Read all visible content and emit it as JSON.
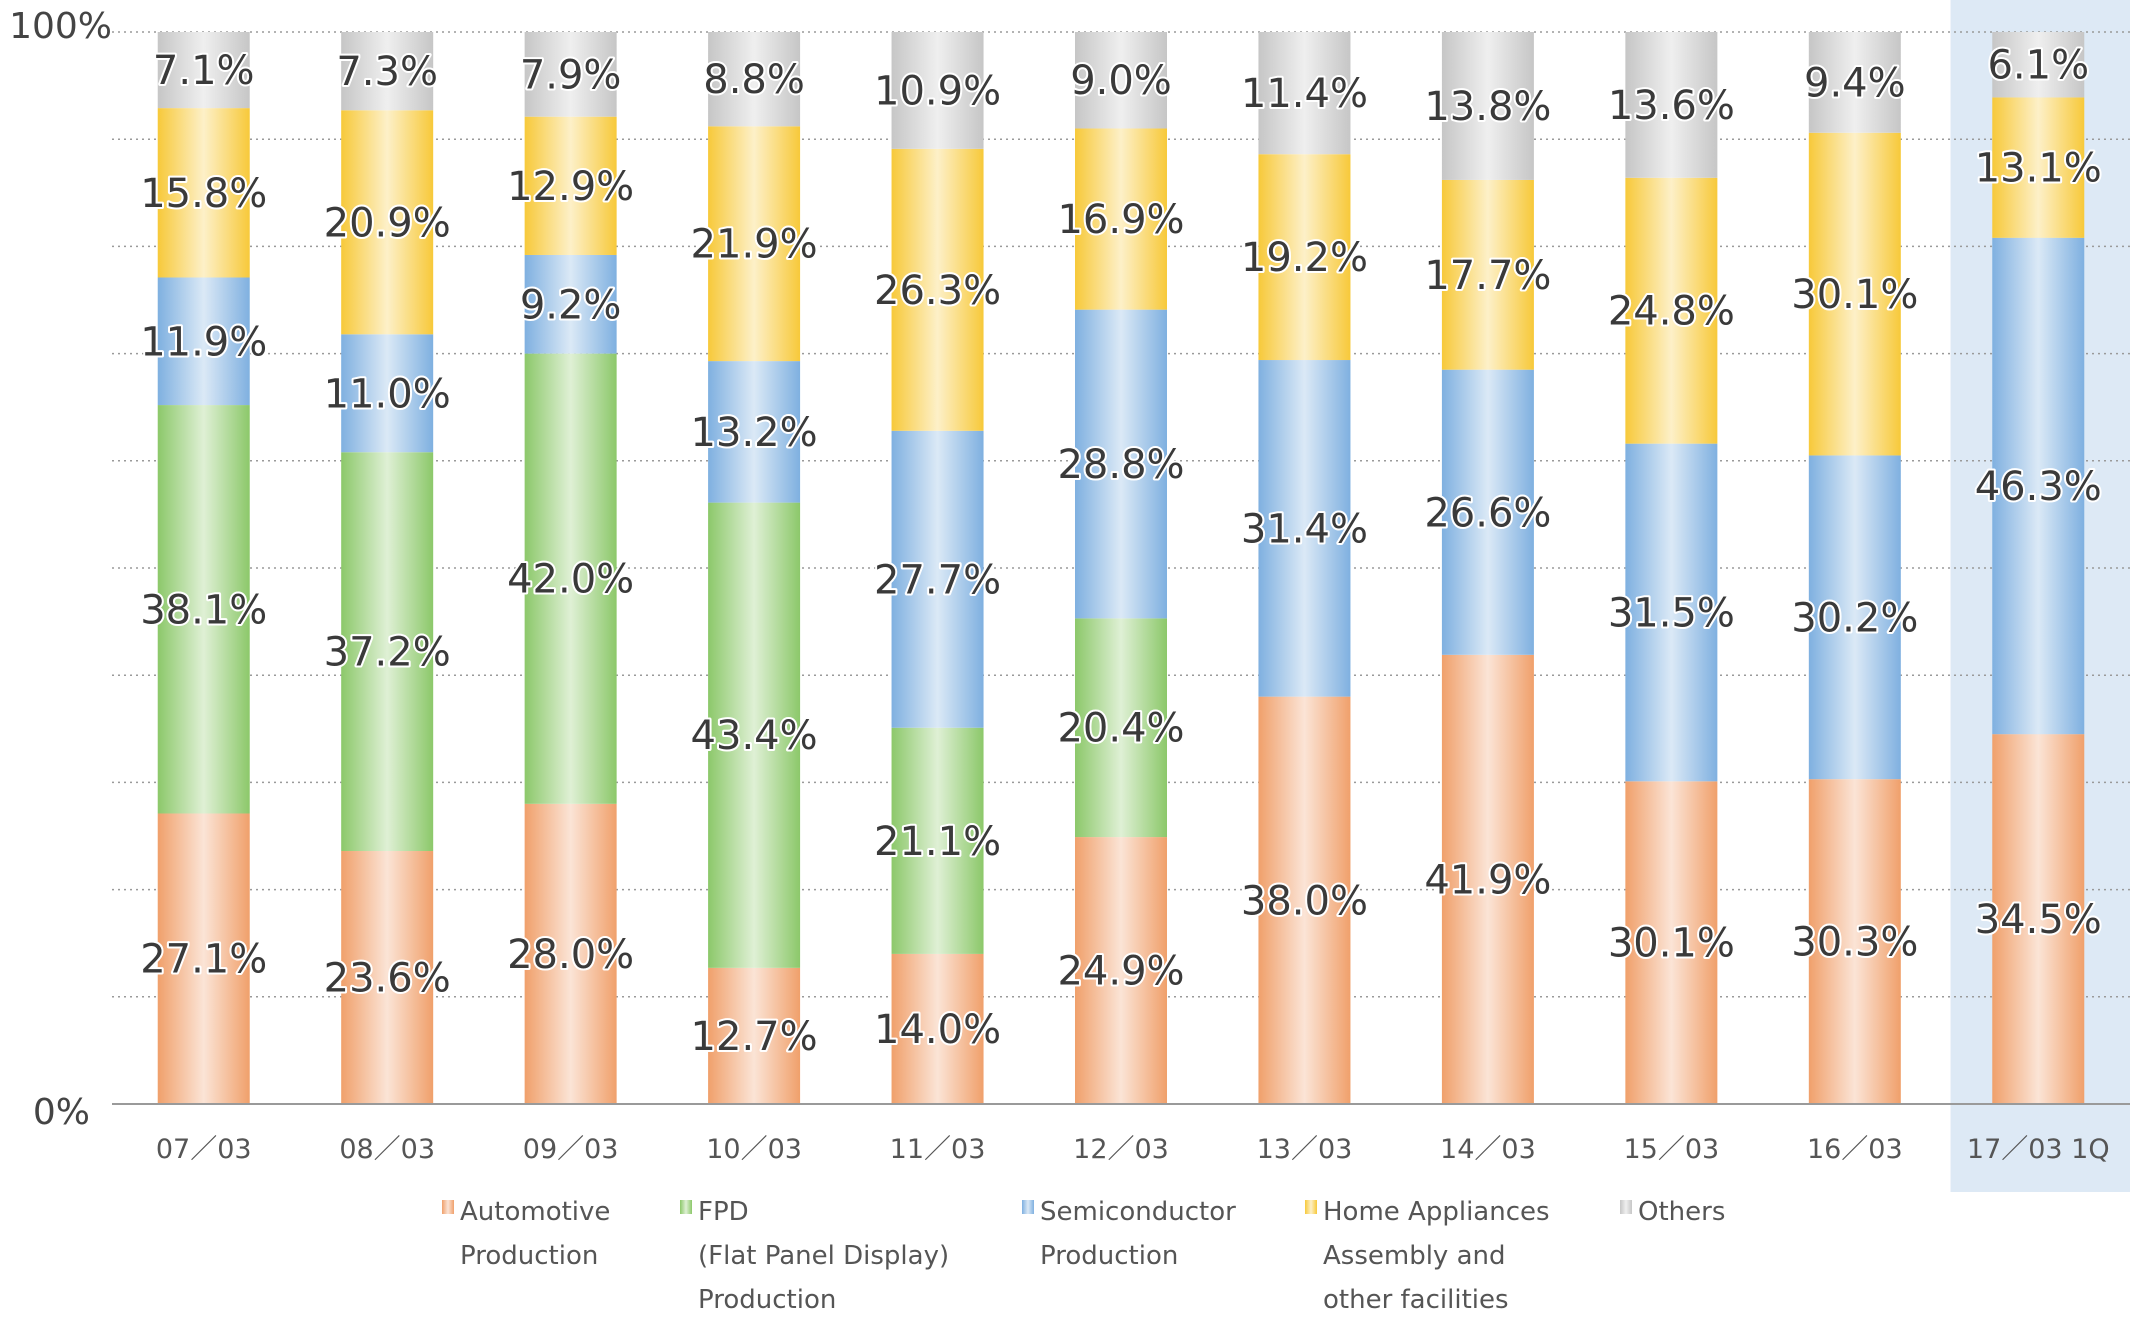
{
  "chart_data": {
    "type": "bar",
    "stacked": true,
    "percent": true,
    "categories": [
      "07／03",
      "08／03",
      "09／03",
      "10／03",
      "11／03",
      "12／03",
      "13／03",
      "14／03",
      "15／03",
      "16／03",
      "17／03 1Q"
    ],
    "highlighted_category": "17／03 1Q",
    "ylim": [
      0,
      100
    ],
    "y_tick_labels": [
      "0%",
      "100%"
    ],
    "grid": "dotted horizontal",
    "legend_position": "bottom",
    "series": [
      {
        "name": "Automotive\nProduction",
        "color": "#f0a06b",
        "values": [
          27.1,
          23.6,
          28.0,
          12.7,
          14.0,
          24.9,
          38.0,
          41.9,
          30.1,
          30.3,
          34.5
        ],
        "labels": [
          "27.1%",
          "23.6%",
          "28.0%",
          "12.7%",
          "14.0%",
          "24.9%",
          "38.0%",
          "41.9%",
          "30.1%",
          "30.3%",
          "34.5%"
        ]
      },
      {
        "name": "FPD\n(Flat Panel Display)\nProduction",
        "color": "#8cc86a",
        "values": [
          38.1,
          37.2,
          42.0,
          43.4,
          21.1,
          20.4,
          0,
          0,
          0,
          0,
          0
        ],
        "labels": [
          "38.1%",
          "37.2%",
          "42.0%",
          "43.4%",
          "21.1%",
          "20.4%",
          "",
          "",
          "",
          "",
          ""
        ]
      },
      {
        "name": "Semiconductor\nProduction",
        "color": "#7fb0e0",
        "values": [
          11.9,
          11.0,
          9.2,
          13.2,
          27.7,
          28.8,
          31.4,
          26.6,
          31.5,
          30.2,
          46.3
        ],
        "labels": [
          "11.9%",
          "11.0%",
          "9.2%",
          "13.2%",
          "27.7%",
          "28.8%",
          "31.4%",
          "26.6%",
          "31.5%",
          "30.2%",
          "46.3%"
        ]
      },
      {
        "name": "Home Appliances\nAssembly and\nother facilities",
        "color": "#f7c93a",
        "values": [
          15.8,
          20.9,
          12.9,
          21.9,
          26.3,
          16.9,
          19.2,
          17.7,
          24.8,
          30.1,
          13.1
        ],
        "labels": [
          "15.8%",
          "20.9%",
          "12.9%",
          "21.9%",
          "26.3%",
          "16.9%",
          "19.2%",
          "17.7%",
          "24.8%",
          "30.1%",
          "13.1%"
        ]
      },
      {
        "name": "Others",
        "color": "#c6c6c6",
        "values": [
          7.1,
          7.3,
          7.9,
          8.8,
          10.9,
          9.0,
          11.4,
          13.8,
          13.6,
          9.4,
          6.1
        ],
        "labels": [
          "7.1%",
          "7.3%",
          "7.9%",
          "8.8%",
          "10.9%",
          "9.0%",
          "11.4%",
          "13.8%",
          "13.6%",
          "9.4%",
          "6.1%"
        ]
      }
    ]
  }
}
